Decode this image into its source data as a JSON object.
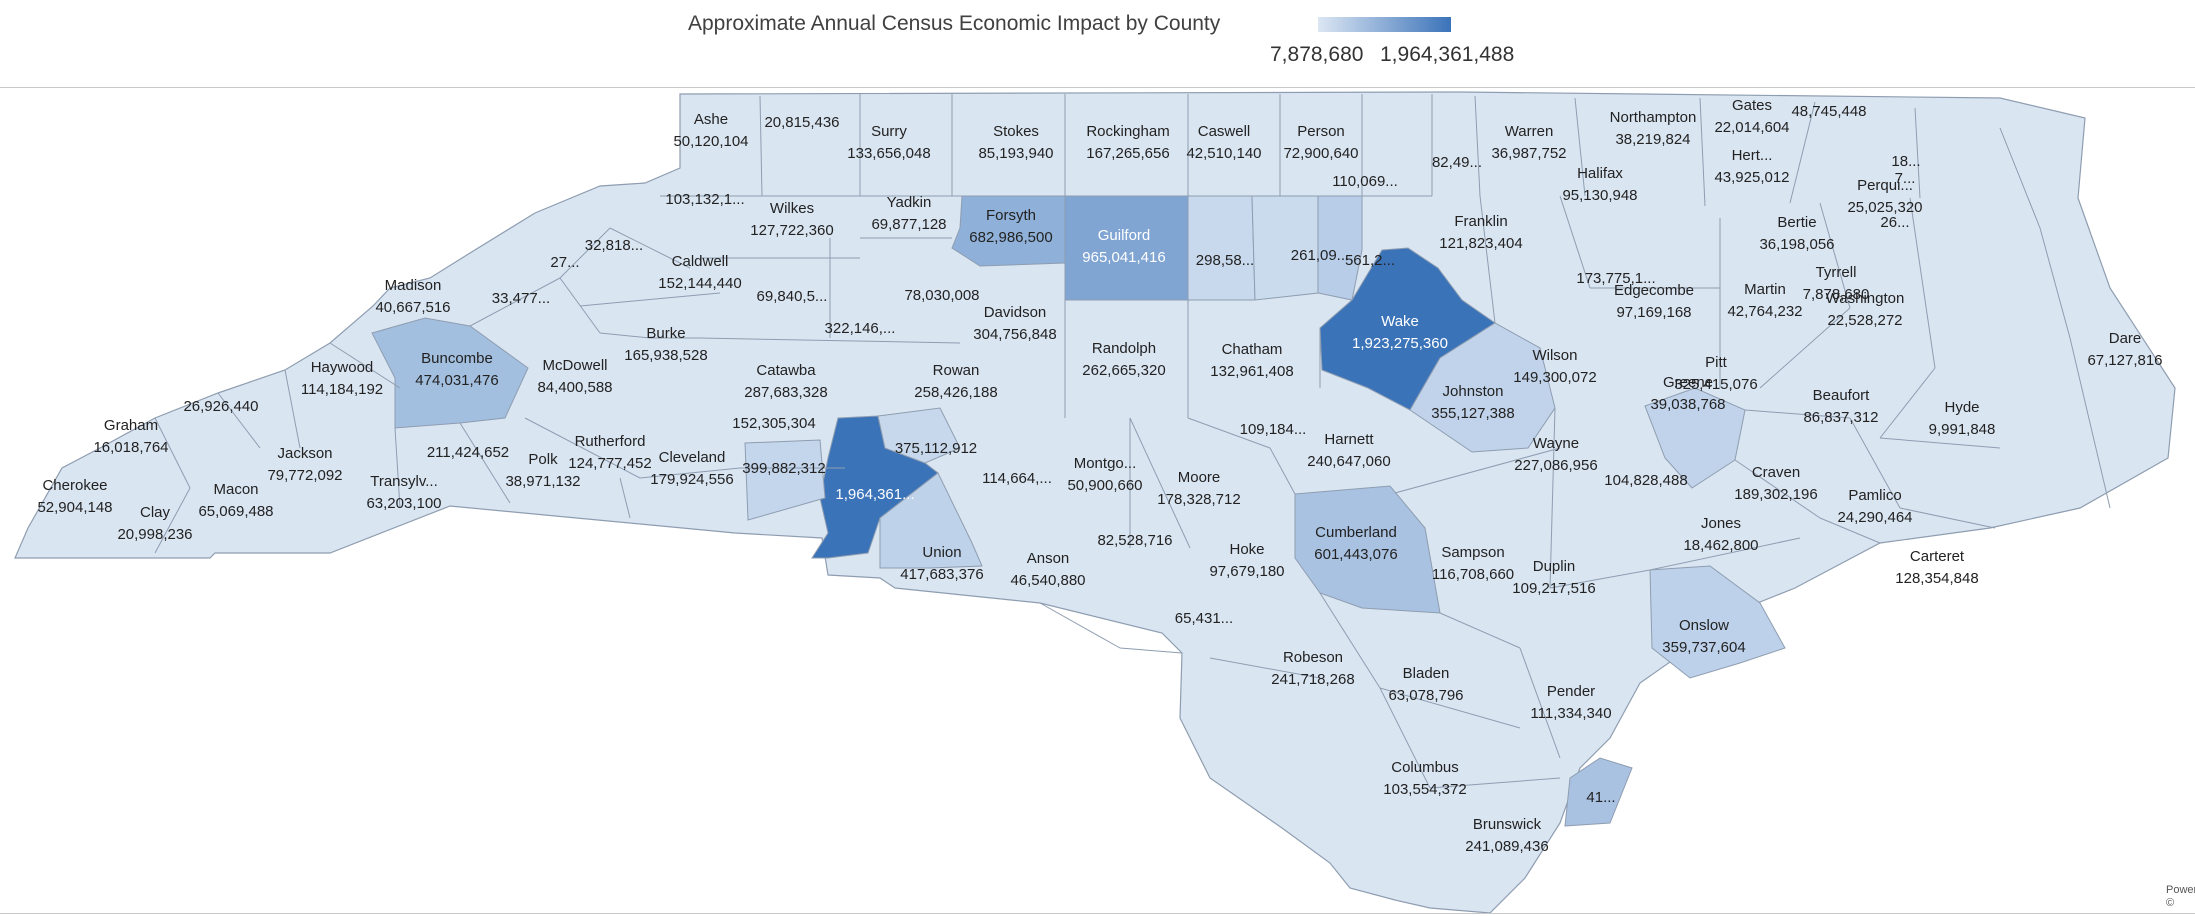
{
  "title": "Approximate Annual Census Economic Impact by County",
  "legend": {
    "min_label": "7,878,680",
    "max_label": "1,964,361,488",
    "color_low": "#dce6f3",
    "color_high": "#3b73b9"
  },
  "credit": "Power\n© ",
  "colors": {
    "base": "#dae5f2",
    "county_border": "#8e9db0",
    "label_dark": "#222222",
    "label_light": "#ffffff"
  },
  "counties": [
    {
      "name": "Ashe",
      "value": "50,120,104",
      "level": 0.02
    },
    {
      "name": "",
      "value": "20,815,436",
      "level": 0.01
    },
    {
      "name": "Surry",
      "value": "133,656,048",
      "level": 0.06
    },
    {
      "name": "Stokes",
      "value": "85,193,940",
      "level": 0.04
    },
    {
      "name": "Rockingham",
      "value": "167,265,656",
      "level": 0.08
    },
    {
      "name": "Caswell",
      "value": "42,510,140",
      "level": 0.02
    },
    {
      "name": "Person",
      "value": "72,900,640",
      "level": 0.03
    },
    {
      "name": "",
      "value": "110,069...",
      "level": 0.05
    },
    {
      "name": "",
      "value": "82,49...",
      "level": 0.04
    },
    {
      "name": "Warren",
      "value": "36,987,752",
      "level": 0.02
    },
    {
      "name": "Northampton",
      "value": "38,219,824",
      "level": 0.02
    },
    {
      "name": "Gates",
      "value": "22,014,604",
      "level": 0.01
    },
    {
      "name": "",
      "value": "48,745,448",
      "level": 0.02
    },
    {
      "name": "Hert...",
      "value": "43,925,012",
      "level": 0.02
    },
    {
      "name": "",
      "value": "7...",
      "level": 0.02
    },
    {
      "name": "",
      "value": "18...",
      "level": 0.01
    },
    {
      "name": "Wilkes",
      "value": "127,722,360",
      "level": 0.06
    },
    {
      "name": "",
      "value": "103,132,1...",
      "level": 0.05
    },
    {
      "name": "Halifax",
      "value": "95,130,948",
      "level": 0.04
    },
    {
      "name": "Perqui...",
      "value": "25,025,320",
      "level": 0.01
    },
    {
      "name": "",
      "value": "26...",
      "level": 0.01
    },
    {
      "name": "Yadkin",
      "value": "69,877,128",
      "level": 0.03
    },
    {
      "name": "Forsyth",
      "value": "682,986,500",
      "level": 0.35
    },
    {
      "name": "Guilford",
      "value": "965,041,416",
      "level": 0.49
    },
    {
      "name": "",
      "value": "298,58...",
      "level": 0.15
    },
    {
      "name": "",
      "value": "261,09...",
      "level": 0.13
    },
    {
      "name": "",
      "value": "561,2...",
      "level": 0.28
    },
    {
      "name": "Franklin",
      "value": "121,823,404",
      "level": 0.06
    },
    {
      "name": "Bertie",
      "value": "36,198,056",
      "level": 0.02
    },
    {
      "name": "",
      "value": "32,818...",
      "level": 0.02
    },
    {
      "name": "",
      "value": "27...",
      "level": 0.01
    },
    {
      "name": "Caldwell",
      "value": "152,144,440",
      "level": 0.07
    },
    {
      "name": "",
      "value": "69,840,5...",
      "level": 0.03
    },
    {
      "name": "",
      "value": "78,030,008",
      "level": 0.04
    },
    {
      "name": "Tyrrell",
      "value": "7,878,680",
      "level": 0.0
    },
    {
      "name": "Madison",
      "value": "40,667,516",
      "level": 0.02
    },
    {
      "name": "",
      "value": "33,477...",
      "level": 0.02
    },
    {
      "name": "",
      "value": "173,775,1...",
      "level": 0.09
    },
    {
      "name": "Edgecombe",
      "value": "97,169,168",
      "level": 0.05
    },
    {
      "name": "Martin",
      "value": "42,764,232",
      "level": 0.02
    },
    {
      "name": "Washington",
      "value": "22,528,272",
      "level": 0.01
    },
    {
      "name": "",
      "value": "322,146,...",
      "level": 0.16
    },
    {
      "name": "Davidson",
      "value": "304,756,848",
      "level": 0.15
    },
    {
      "name": "Wake",
      "value": "1,923,275,360",
      "level": 0.98
    },
    {
      "name": "Burke",
      "value": "165,938,528",
      "level": 0.08
    },
    {
      "name": "Dare",
      "value": "67,127,816",
      "level": 0.03
    },
    {
      "name": "Randolph",
      "value": "262,665,320",
      "level": 0.13
    },
    {
      "name": "Chatham",
      "value": "132,961,408",
      "level": 0.06
    },
    {
      "name": "Wilson",
      "value": "149,300,072",
      "level": 0.07
    },
    {
      "name": "Haywood",
      "value": "114,184,192",
      "level": 0.05
    },
    {
      "name": "Buncombe",
      "value": "474,031,476",
      "level": 0.24
    },
    {
      "name": "McDowell",
      "value": "84,400,588",
      "level": 0.04
    },
    {
      "name": "Catawba",
      "value": "287,683,328",
      "level": 0.14
    },
    {
      "name": "Rowan",
      "value": "258,426,188",
      "level": 0.13
    },
    {
      "name": "Pitt",
      "value": "325,415,076",
      "level": 0.16
    },
    {
      "name": "",
      "value": "26,926,440",
      "level": 0.01
    },
    {
      "name": "Beaufort",
      "value": "86,837,312",
      "level": 0.04
    },
    {
      "name": "Johnston",
      "value": "355,127,388",
      "level": 0.18
    },
    {
      "name": "Hyde",
      "value": "9,991,848",
      "level": 0.0
    },
    {
      "name": "Greene",
      "value": "39,038,768",
      "level": 0.02
    },
    {
      "name": "",
      "value": "152,305,304",
      "level": 0.07
    },
    {
      "name": "",
      "value": "109,184...",
      "level": 0.05
    },
    {
      "name": "Graham",
      "value": "16,018,764",
      "level": 0.0
    },
    {
      "name": "",
      "value": "211,424,652",
      "level": 0.1
    },
    {
      "name": "Rutherford",
      "value": "124,777,452",
      "level": 0.06
    },
    {
      "name": "Jackson",
      "value": "79,772,092",
      "level": 0.04
    },
    {
      "name": "",
      "value": "375,112,912",
      "level": 0.19
    },
    {
      "name": "Harnett",
      "value": "240,647,060",
      "level": 0.12
    },
    {
      "name": "Wayne",
      "value": "227,086,956",
      "level": 0.11
    },
    {
      "name": "Polk",
      "value": "38,971,132",
      "level": 0.02
    },
    {
      "name": "Cleveland",
      "value": "179,924,556",
      "level": 0.09
    },
    {
      "name": "",
      "value": "399,882,312",
      "level": 0.2
    },
    {
      "name": "",
      "value": "114,664,...",
      "level": 0.05
    },
    {
      "name": "Montgo...",
      "value": "50,900,660",
      "level": 0.02
    },
    {
      "name": "Moore",
      "value": "178,328,712",
      "level": 0.09
    },
    {
      "name": "",
      "value": "104,828,488",
      "level": 0.05
    },
    {
      "name": "Craven",
      "value": "189,302,196",
      "level": 0.09
    },
    {
      "name": "Transylv...",
      "value": "63,203,100",
      "level": 0.03
    },
    {
      "name": "Cherokee",
      "value": "52,904,148",
      "level": 0.02
    },
    {
      "name": "Macon",
      "value": "65,069,488",
      "level": 0.03
    },
    {
      "name": "",
      "value": "1,964,361...",
      "level": 1.0
    },
    {
      "name": "Pamlico",
      "value": "24,290,464",
      "level": 0.01
    },
    {
      "name": "Clay",
      "value": "20,998,236",
      "level": 0.01
    },
    {
      "name": "",
      "value": "82,528,716",
      "level": 0.04
    },
    {
      "name": "Jones",
      "value": "18,462,800",
      "level": 0.01
    },
    {
      "name": "Cumberland",
      "value": "601,443,076",
      "level": 0.3
    },
    {
      "name": "Hoke",
      "value": "97,679,180",
      "level": 0.05
    },
    {
      "name": "Sampson",
      "value": "116,708,660",
      "level": 0.06
    },
    {
      "name": "Carteret",
      "value": "128,354,848",
      "level": 0.06
    },
    {
      "name": "Union",
      "value": "417,683,376",
      "level": 0.21
    },
    {
      "name": "Anson",
      "value": "46,540,880",
      "level": 0.02
    },
    {
      "name": "Duplin",
      "value": "109,217,516",
      "level": 0.05
    },
    {
      "name": "",
      "value": "65,431...",
      "level": 0.03
    },
    {
      "name": "Onslow",
      "value": "359,737,604",
      "level": 0.18
    },
    {
      "name": "Robeson",
      "value": "241,718,268",
      "level": 0.12
    },
    {
      "name": "Bladen",
      "value": "63,078,796",
      "level": 0.03
    },
    {
      "name": "Pender",
      "value": "111,334,340",
      "level": 0.05
    },
    {
      "name": "Columbus",
      "value": "103,554,372",
      "level": 0.05
    },
    {
      "name": "",
      "value": "41...",
      "level": 0.2
    },
    {
      "name": "Brunswick",
      "value": "241,089,436",
      "level": 0.12
    }
  ]
}
